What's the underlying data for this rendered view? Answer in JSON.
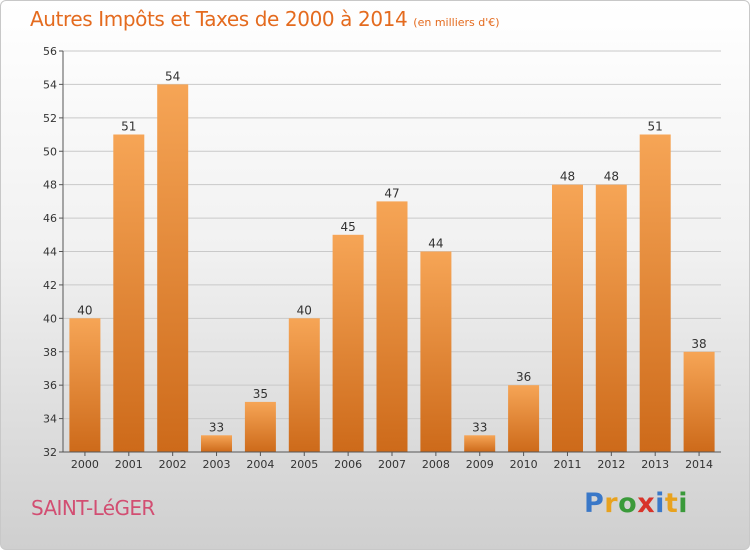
{
  "title": "Autres Impôts et Taxes de 2000 à 2014",
  "unit": "(en milliers d'€)",
  "place": "SAINT-LéGER",
  "logo": {
    "text": "Proxiti",
    "letters": [
      {
        "char": "P",
        "color": "#3a78c8"
      },
      {
        "char": "r",
        "color": "#e8a21e"
      },
      {
        "char": "o",
        "color": "#3a9a3a"
      },
      {
        "char": "x",
        "color": "#d8342a"
      },
      {
        "char": "i",
        "color": "#3a78c8"
      },
      {
        "char": "t",
        "color": "#e8a21e"
      },
      {
        "char": "i",
        "color": "#3a9a3a"
      }
    ]
  },
  "colors": {
    "bar_top": "#f6a556",
    "bar_bottom": "#cd6a1a",
    "grid": "#c9c9c9",
    "axis": "#555555",
    "label": "#333333"
  },
  "chart_data": {
    "type": "bar",
    "categories": [
      "2000",
      "2001",
      "2002",
      "2003",
      "2004",
      "2005",
      "2006",
      "2007",
      "2008",
      "2009",
      "2010",
      "2011",
      "2012",
      "2013",
      "2014"
    ],
    "values": [
      40,
      51,
      54,
      33,
      35,
      40,
      45,
      47,
      44,
      33,
      36,
      48,
      48,
      51,
      38
    ],
    "data_labels": [
      "40",
      "51",
      "54",
      "33",
      "35",
      "40",
      "45",
      "47",
      "44",
      "33",
      "36",
      "48",
      "48",
      "51",
      "38"
    ],
    "yticks": [
      "32",
      "34",
      "36",
      "38",
      "40",
      "42",
      "44",
      "46",
      "48",
      "50",
      "52",
      "54",
      "56"
    ],
    "ylim": [
      32,
      56
    ],
    "grid": true
  }
}
